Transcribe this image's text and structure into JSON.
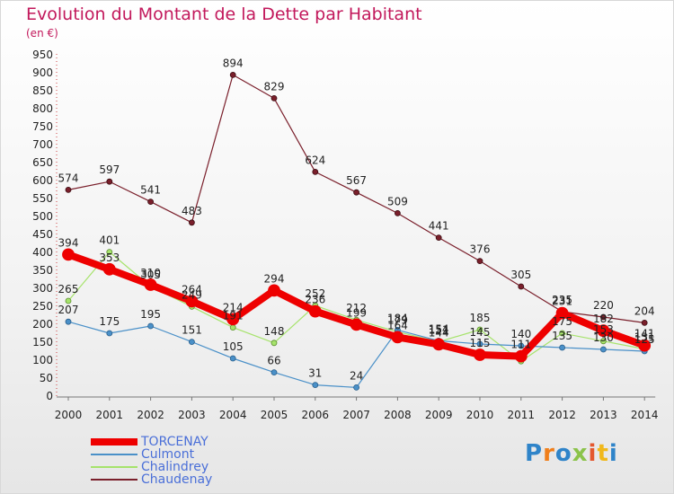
{
  "title": "Evolution du Montant de la Dette par Habitant",
  "subtitle": "(en €)",
  "logo_text": "Proxiti",
  "chart_data": {
    "type": "line",
    "title": "Evolution du Montant de la Dette par Habitant",
    "unit": "(en €)",
    "x": [
      "2000",
      "2001",
      "2002",
      "2003",
      "2004",
      "2005",
      "2006",
      "2007",
      "2008",
      "2009",
      "2010",
      "2011",
      "2012",
      "2013",
      "2014"
    ],
    "ylim": [
      0,
      950
    ],
    "yticks": [
      0,
      50,
      100,
      150,
      200,
      250,
      300,
      350,
      400,
      450,
      500,
      550,
      600,
      650,
      700,
      750,
      800,
      850,
      900,
      950
    ],
    "grid": false,
    "legend_position": "bottom-left",
    "series": [
      {
        "name": "Chaudenay",
        "color": "#7a1f2b",
        "values": [
          574,
          597,
          541,
          483,
          894,
          829,
          624,
          567,
          509,
          441,
          376,
          305,
          235,
          220,
          204
        ]
      },
      {
        "name": "Chalindrey",
        "color": "#a6e36b",
        "values": [
          265,
          401,
          305,
          249,
          191,
          148,
          252,
          212,
          179,
          151,
          185,
          97,
          175,
          153,
          131
        ]
      },
      {
        "name": "Culmont",
        "color": "#4a90c8",
        "values": [
          207,
          175,
          195,
          151,
          105,
          66,
          31,
          24,
          184,
          154,
          145,
          140,
          135,
          130,
          125
        ]
      },
      {
        "name": "TORCENAY",
        "color": "#ee0000",
        "values": [
          394,
          353,
          310,
          264,
          214,
          294,
          236,
          199,
          164,
          144,
          115,
          111,
          231,
          182,
          141
        ]
      }
    ],
    "point_labels": [
      {
        "series": "Chaudenay",
        "labels": [
          "574",
          "597",
          "541",
          "483",
          "894",
          "829",
          "624",
          "567",
          "509",
          "441",
          "376",
          "305",
          "235",
          "220",
          "204"
        ]
      },
      {
        "series": "Chalindrey",
        "labels": [
          "265",
          "401",
          "305",
          "249",
          "191",
          "148",
          "252",
          "212",
          "179",
          "151",
          "185",
          "",
          "175",
          "153",
          "131"
        ]
      },
      {
        "series": "Culmont",
        "labels": [
          "207",
          "175",
          "195",
          "151",
          "105",
          "66",
          "31",
          "24",
          "184",
          "154",
          "145",
          "140",
          "135",
          "130",
          "125"
        ]
      },
      {
        "series": "TORCENAY",
        "labels": [
          "394",
          "353",
          "310",
          "264",
          "214",
          "294",
          "236",
          "199",
          "164",
          "144",
          "115",
          "111",
          "231",
          "182",
          "141"
        ]
      }
    ],
    "legend": [
      "TORCENAY",
      "Culmont",
      "Chalindrey",
      "Chaudenay"
    ]
  }
}
